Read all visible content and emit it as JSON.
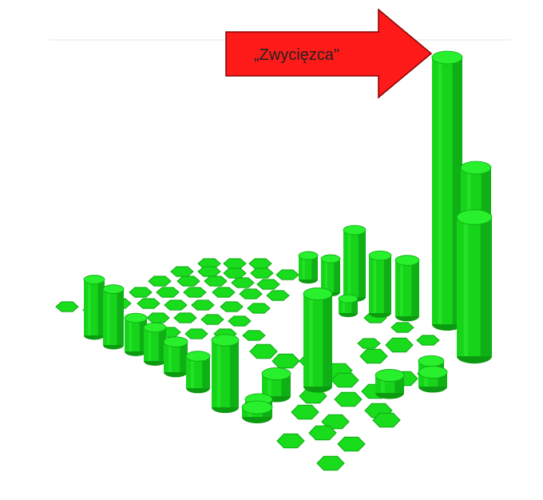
{
  "arrow": {
    "label": "„Zwycięzca\"",
    "color": "#ff1a1a",
    "outline": "#8a0000"
  },
  "colors": {
    "side": "#16d41a",
    "shade": "#0fb015",
    "top": "#28f02c",
    "bottom": "#0c9a10",
    "hex": "#19dc1d",
    "hex_edge": "#0da812",
    "rule": "#e4e4e4"
  }
}
